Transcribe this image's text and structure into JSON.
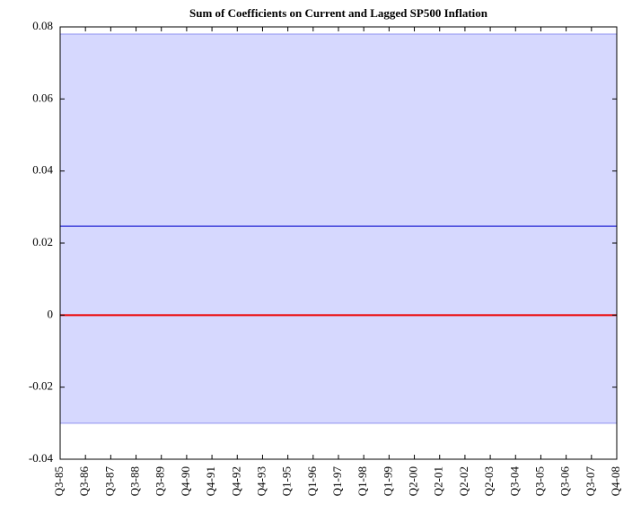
{
  "chart_data": {
    "type": "band-line",
    "title": "Sum of Coefficients on Current and Lagged SP500 Inflation",
    "categories": [
      "Q3-85",
      "Q3-86",
      "Q3-87",
      "Q3-88",
      "Q3-89",
      "Q4-90",
      "Q4-91",
      "Q4-92",
      "Q4-93",
      "Q1-95",
      "Q1-96",
      "Q1-97",
      "Q1-98",
      "Q1-99",
      "Q2-00",
      "Q2-01",
      "Q2-02",
      "Q2-03",
      "Q3-04",
      "Q3-05",
      "Q3-06",
      "Q3-07",
      "Q4-08"
    ],
    "band": {
      "color": "#d6d8fe",
      "edge_color": "#8f92f0",
      "upper": [
        0.078,
        0.078,
        0.078,
        0.078,
        0.078,
        0.078,
        0.078,
        0.078,
        0.078,
        0.078,
        0.078,
        0.078,
        0.078,
        0.078,
        0.078,
        0.078,
        0.078,
        0.078,
        0.078,
        0.078,
        0.078,
        0.078,
        0.078
      ],
      "lower": [
        -0.03,
        -0.03,
        -0.03,
        -0.03,
        -0.03,
        -0.03,
        -0.03,
        -0.03,
        -0.03,
        -0.03,
        -0.03,
        -0.03,
        -0.03,
        -0.03,
        -0.03,
        -0.03,
        -0.03,
        -0.03,
        -0.03,
        -0.03,
        -0.03,
        -0.03,
        -0.03
      ]
    },
    "series": [
      {
        "color": "#0000cc",
        "values": [
          0.0247,
          0.0247,
          0.0247,
          0.0247,
          0.0247,
          0.0247,
          0.0247,
          0.0247,
          0.0247,
          0.0247,
          0.0247,
          0.0247,
          0.0247,
          0.0247,
          0.0247,
          0.0247,
          0.0247,
          0.0247,
          0.0247,
          0.0247,
          0.0247,
          0.0247,
          0.0247
        ]
      },
      {
        "color": "#ee0000",
        "values": [
          0,
          0,
          0,
          0,
          0,
          0,
          0,
          0,
          0,
          0,
          0,
          0,
          0,
          0,
          0,
          0,
          0,
          0,
          0,
          0,
          0,
          0,
          0
        ]
      }
    ],
    "ylim": [
      -0.04,
      0.08
    ],
    "yticks": [
      -0.04,
      -0.02,
      0,
      0.02,
      0.04,
      0.06,
      0.08
    ]
  }
}
